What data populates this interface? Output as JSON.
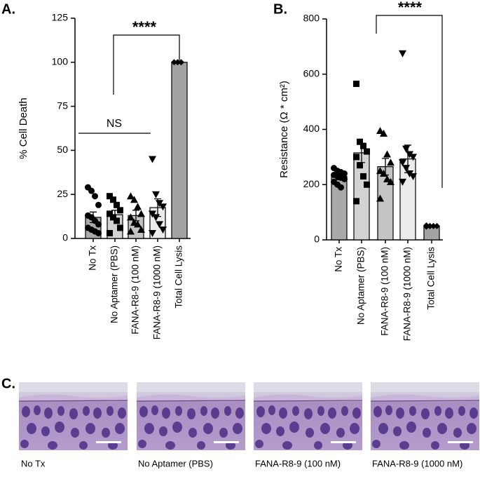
{
  "chart_data": [
    {
      "type": "bar",
      "panel_label": "A.",
      "y_label": "% Cell Death",
      "categories": [
        "No Tx",
        "No Aptamer (PBS)",
        "FANA-R8-9 (100 nM)",
        "FANA-R8-9 (1000 nM)",
        "Total Cell Lysis"
      ],
      "values": [
        12,
        13.5,
        13,
        17.5,
        100
      ],
      "errors": [
        3,
        2.5,
        3,
        5,
        0
      ],
      "points": [
        [
          29,
          27,
          24,
          19,
          13,
          12,
          10,
          8,
          6,
          5,
          4,
          3
        ],
        [
          24,
          22,
          19,
          16,
          14,
          12,
          10,
          6,
          3
        ],
        [
          24,
          22,
          18,
          14,
          12,
          9,
          8,
          5,
          4
        ],
        [
          45,
          25,
          20,
          18,
          14,
          12,
          8,
          5,
          3
        ],
        [
          100,
          100,
          100
        ]
      ],
      "bar_colors": [
        "#a9a9a9",
        "#d3d3d3",
        "#c4c4c4",
        "#ececec",
        "#a3a3a3"
      ],
      "markers": [
        "circle",
        "square",
        "triangle",
        "triangle-down",
        "diamond"
      ],
      "ylim": [
        0,
        125
      ],
      "yticks": [
        0,
        25,
        50,
        75,
        100,
        125
      ],
      "annotations": [
        "****",
        "NS"
      ]
    },
    {
      "type": "bar",
      "panel_label": "B.",
      "y_label": "Resistance (Ω * cm²)",
      "categories": [
        "No Tx",
        "No Aptamer (PBS)",
        "FANA-R8-9 (100 nM)",
        "FANA-R8-9 (1000 nM)",
        "Total Cell Lysis"
      ],
      "values": [
        230,
        315,
        265,
        293,
        50
      ],
      "errors": [
        12,
        35,
        30,
        50,
        2
      ],
      "points": [
        [
          260,
          250,
          245,
          240,
          235,
          230,
          225,
          220,
          210,
          200,
          190
        ],
        [
          565,
          355,
          340,
          320,
          300,
          270,
          230,
          200,
          140
        ],
        [
          395,
          385,
          310,
          280,
          250,
          240,
          220,
          210,
          150
        ],
        [
          675,
          330,
          310,
          300,
          280,
          260,
          240,
          230,
          210
        ],
        [
          52,
          50,
          50,
          50,
          48,
          50
        ]
      ],
      "bar_colors": [
        "#a9a9a9",
        "#d3d3d3",
        "#c4c4c4",
        "#ececec",
        "#a3a3a3"
      ],
      "markers": [
        "circle",
        "square",
        "triangle",
        "triangle-down",
        "diamond"
      ],
      "ylim": [
        0,
        800
      ],
      "yticks": [
        0,
        200,
        400,
        600,
        800
      ],
      "annotations": [
        "****"
      ]
    }
  ],
  "panel_c": {
    "label": "C.",
    "captions": [
      "No Tx",
      "No Aptamer (PBS)",
      "FANA-R8-9 (100 nM)",
      "FANA-R8-9 (1000 nM)"
    ]
  }
}
